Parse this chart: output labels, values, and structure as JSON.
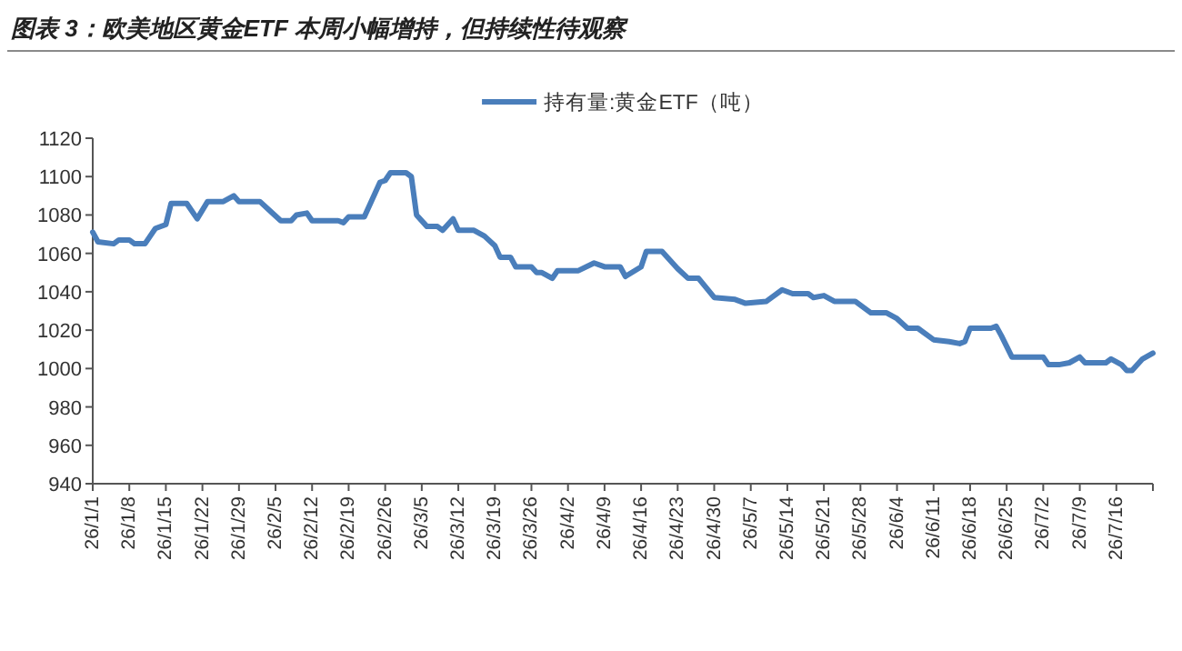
{
  "chart_data": {
    "type": "line",
    "title": "图表 3：欧美地区黄金ETF 本周小幅增持，但持续性待观察",
    "legend": "top",
    "grid": false,
    "marker": "none",
    "line_style": "solid",
    "xlim": [
      "--01-01",
      "--07-23"
    ],
    "ylim": [
      940,
      1120
    ],
    "yticks": [
      940,
      960,
      980,
      1000,
      1020,
      1040,
      1060,
      1080,
      1100,
      1120
    ],
    "xticks": [
      {
        "value": "--01-01",
        "label": "26/1/1"
      },
      {
        "value": "--01-08",
        "label": "26/1/8"
      },
      {
        "value": "--01-15",
        "label": "26/1/15"
      },
      {
        "value": "--01-22",
        "label": "26/1/22"
      },
      {
        "value": "--01-29",
        "label": "26/1/29"
      },
      {
        "value": "--02-05",
        "label": "26/2/5"
      },
      {
        "value": "--02-12",
        "label": "26/2/12"
      },
      {
        "value": "--02-19",
        "label": "26/2/19"
      },
      {
        "value": "--02-26",
        "label": "26/2/26"
      },
      {
        "value": "--03-05",
        "label": "26/3/5"
      },
      {
        "value": "--03-12",
        "label": "26/3/12"
      },
      {
        "value": "--03-19",
        "label": "26/3/19"
      },
      {
        "value": "--03-26",
        "label": "26/3/26"
      },
      {
        "value": "--04-02",
        "label": "26/4/2"
      },
      {
        "value": "--04-09",
        "label": "26/4/9"
      },
      {
        "value": "--04-16",
        "label": "26/4/16"
      },
      {
        "value": "--04-23",
        "label": "26/4/23"
      },
      {
        "value": "--04-30",
        "label": "26/4/30"
      },
      {
        "value": "--05-07",
        "label": "26/5/7"
      },
      {
        "value": "--05-14",
        "label": "26/5/14"
      },
      {
        "value": "--05-21",
        "label": "26/5/21"
      },
      {
        "value": "--05-28",
        "label": "26/5/28"
      },
      {
        "value": "--06-04",
        "label": "26/6/4"
      },
      {
        "value": "--06-11",
        "label": "26/6/11"
      },
      {
        "value": "--06-18",
        "label": "26/6/18"
      },
      {
        "value": "--06-25",
        "label": "26/6/25"
      },
      {
        "value": "--07-02",
        "label": "26/7/2"
      },
      {
        "value": "--07-09",
        "label": "26/7/9"
      },
      {
        "value": "--07-16",
        "label": "26/7/16"
      }
    ],
    "x": [
      "--01-01",
      "--01-02",
      "--01-05",
      "--01-06",
      "--01-08",
      "--01-09",
      "--01-11",
      "--01-13",
      "--01-15",
      "--01-16",
      "--01-19",
      "--01-21",
      "--01-23",
      "--01-26",
      "--01-28",
      "--01-29",
      "--02-02",
      "--02-04",
      "--02-06",
      "--02-08",
      "--02-09",
      "--02-11",
      "--02-12",
      "--02-17",
      "--02-18",
      "--02-19",
      "--02-22",
      "--02-25",
      "--02-26",
      "--02-27",
      "--03-02",
      "--03-03",
      "--03-04",
      "--03-06",
      "--03-08",
      "--03-09",
      "--03-11",
      "--03-12",
      "--03-15",
      "--03-17",
      "--03-19",
      "--03-20",
      "--03-22",
      "--03-23",
      "--03-26",
      "--03-27",
      "--03-28",
      "--03-30",
      "--03-31",
      "--04-04",
      "--04-07",
      "--04-09",
      "--04-12",
      "--04-13",
      "--04-16",
      "--04-17",
      "--04-20",
      "--04-23",
      "--04-25",
      "--04-27",
      "--04-30",
      "--05-04",
      "--05-06",
      "--05-10",
      "--05-13",
      "--05-15",
      "--05-18",
      "--05-19",
      "--05-21",
      "--05-23",
      "--05-27",
      "--05-30",
      "--06-02",
      "--06-04",
      "--06-06",
      "--06-08",
      "--06-11",
      "--06-14",
      "--06-16",
      "--06-17",
      "--06-18",
      "--06-22",
      "--06-23",
      "--06-24",
      "--06-26",
      "--07-02",
      "--07-03",
      "--07-05",
      "--07-07",
      "--07-09",
      "--07-10",
      "--07-14",
      "--07-15",
      "--07-17",
      "--07-18",
      "--07-19",
      "--07-21",
      "--07-23"
    ],
    "series": [
      {
        "name": "持有量:黄金ETF（吨）",
        "color": "#4a7ebb",
        "values": [
          1071,
          1066,
          1065,
          1067,
          1067,
          1065,
          1065,
          1073,
          1075,
          1086,
          1086,
          1078,
          1087,
          1087,
          1090,
          1087,
          1087,
          1082,
          1077,
          1077,
          1080,
          1081,
          1077,
          1077,
          1076,
          1079,
          1079,
          1097,
          1098,
          1102,
          1102,
          1100,
          1080,
          1074,
          1074,
          1072,
          1078,
          1072,
          1072,
          1069,
          1064,
          1058,
          1058,
          1053,
          1053,
          1050,
          1050,
          1047,
          1051,
          1051,
          1055,
          1053,
          1053,
          1048,
          1053,
          1061,
          1061,
          1052,
          1047,
          1047,
          1037,
          1036,
          1034,
          1035,
          1041,
          1039,
          1039,
          1037,
          1038,
          1035,
          1035,
          1029,
          1029,
          1026,
          1021,
          1021,
          1015,
          1014,
          1013,
          1014,
          1021,
          1021,
          1022,
          1017,
          1006,
          1006,
          1002,
          1002,
          1003,
          1006,
          1003,
          1003,
          1005,
          1002,
          999,
          999,
          1005,
          1008
        ]
      }
    ]
  }
}
